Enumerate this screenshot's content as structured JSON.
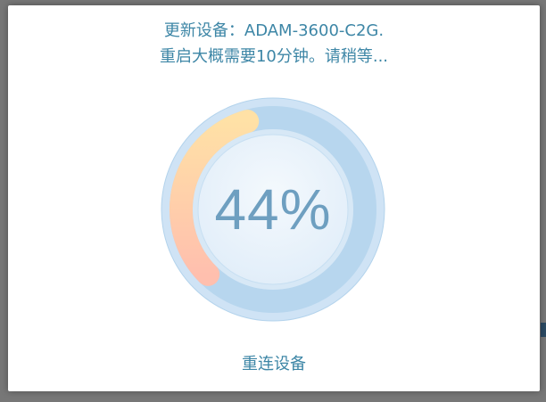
{
  "dialog": {
    "message_line1": "更新设备：ADAM-3600-C2G.",
    "message_line2": "重启大概需要10分钟。请稍等...",
    "reconnect_label": "重连设备"
  },
  "progress": {
    "percent": 44,
    "percent_label": "44%"
  },
  "colors": {
    "text_accent": "#3d86a6",
    "track": "#b7d6ee",
    "outer_disc": "#cfe3f5",
    "inner_disc": "#eaf3fb",
    "arc_start": "#ffe1a6",
    "arc_end": "#ffbfae"
  }
}
